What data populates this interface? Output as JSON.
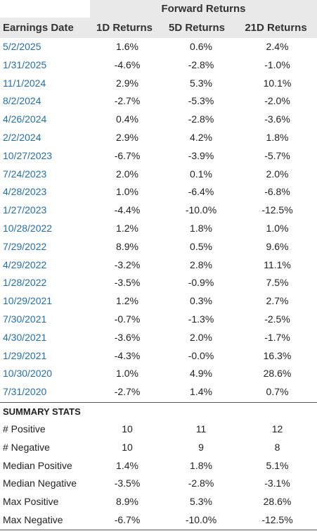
{
  "header": {
    "group_title": "Forward Returns",
    "col_date": "Earnings Date",
    "col_1d": "1D Returns",
    "col_5d": "5D Returns",
    "col_21d": "21D Returns"
  },
  "rows": [
    {
      "date": "5/2/2025",
      "d1": "1.6%",
      "d5": "0.6%",
      "d21": "2.4%"
    },
    {
      "date": "1/31/2025",
      "d1": "-4.6%",
      "d5": "-2.8%",
      "d21": "-1.0%"
    },
    {
      "date": "11/1/2024",
      "d1": "2.9%",
      "d5": "5.3%",
      "d21": "10.1%"
    },
    {
      "date": "8/2/2024",
      "d1": "-2.7%",
      "d5": "-5.3%",
      "d21": "-2.0%"
    },
    {
      "date": "4/26/2024",
      "d1": "0.4%",
      "d5": "-2.8%",
      "d21": "-3.6%"
    },
    {
      "date": "2/2/2024",
      "d1": "2.9%",
      "d5": "4.2%",
      "d21": "1.8%"
    },
    {
      "date": "10/27/2023",
      "d1": "-6.7%",
      "d5": "-3.9%",
      "d21": "-5.7%"
    },
    {
      "date": "7/24/2023",
      "d1": "2.0%",
      "d5": "0.1%",
      "d21": "2.0%"
    },
    {
      "date": "4/28/2023",
      "d1": "1.0%",
      "d5": "-6.4%",
      "d21": "-6.8%"
    },
    {
      "date": "1/27/2023",
      "d1": "-4.4%",
      "d5": "-10.0%",
      "d21": "-12.5%"
    },
    {
      "date": "10/28/2022",
      "d1": "1.2%",
      "d5": "1.8%",
      "d21": "1.0%"
    },
    {
      "date": "7/29/2022",
      "d1": "8.9%",
      "d5": "0.5%",
      "d21": "9.6%"
    },
    {
      "date": "4/29/2022",
      "d1": "-3.2%",
      "d5": "2.8%",
      "d21": "11.1%"
    },
    {
      "date": "1/28/2022",
      "d1": "-3.5%",
      "d5": "-0.9%",
      "d21": "7.5%"
    },
    {
      "date": "10/29/2021",
      "d1": "1.2%",
      "d5": "0.3%",
      "d21": "2.7%"
    },
    {
      "date": "7/30/2021",
      "d1": "-0.7%",
      "d5": "-1.3%",
      "d21": "-2.5%"
    },
    {
      "date": "4/30/2021",
      "d1": "-3.6%",
      "d5": "2.0%",
      "d21": "-1.7%"
    },
    {
      "date": "1/29/2021",
      "d1": "-4.3%",
      "d5": "-0.0%",
      "d21": "16.3%"
    },
    {
      "date": "10/30/2020",
      "d1": "1.0%",
      "d5": "4.9%",
      "d21": "28.6%"
    },
    {
      "date": "7/31/2020",
      "d1": "-2.7%",
      "d5": "1.4%",
      "d21": "0.7%"
    }
  ],
  "summary": {
    "title": "SUMMARY STATS",
    "rows": [
      {
        "label": "# Positive",
        "d1": "10",
        "d5": "11",
        "d21": "12"
      },
      {
        "label": "# Negative",
        "d1": "10",
        "d5": "9",
        "d21": "8"
      },
      {
        "label": "Median Positive",
        "d1": "1.4%",
        "d5": "1.8%",
        "d21": "5.1%"
      },
      {
        "label": "Median Negative",
        "d1": "-3.5%",
        "d5": "-2.8%",
        "d21": "-3.1%"
      },
      {
        "label": "Max Positive",
        "d1": "8.9%",
        "d5": "5.3%",
        "d21": "28.6%"
      },
      {
        "label": "Max Negative",
        "d1": "-6.7%",
        "d5": "-10.0%",
        "d21": "-12.5%"
      }
    ]
  },
  "colors": {
    "header_bg": "#e9e9e9",
    "date_link": "#1f6fb0",
    "divider": "#555555"
  }
}
